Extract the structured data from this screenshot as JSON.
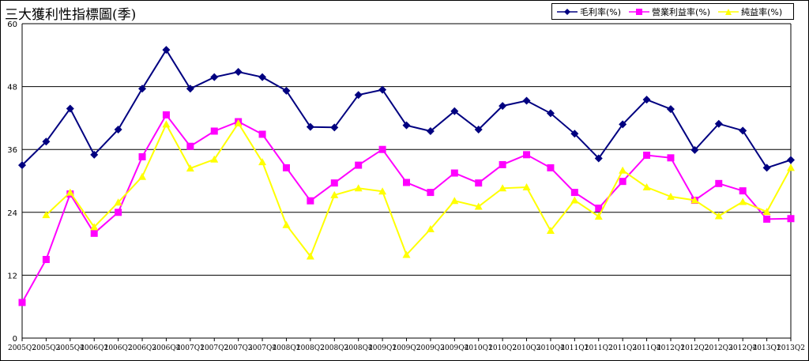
{
  "chart_data": {
    "type": "line",
    "title": "三大獲利性指標圖(季)",
    "xlabel": "",
    "ylabel": "",
    "ylim": [
      0,
      60
    ],
    "yticks": [
      0,
      12,
      24,
      36,
      48,
      60
    ],
    "grid": "horizontal",
    "legend_position": "top-right",
    "categories": [
      "2005Q2",
      "2005Q3",
      "2005Q4",
      "2006Q1",
      "2006Q2",
      "2006Q3",
      "2006Q4",
      "2007Q1",
      "2007Q2",
      "2007Q3",
      "2007Q4",
      "2008Q1",
      "2008Q2",
      "2008Q3",
      "2008Q4",
      "2009Q1",
      "2009Q2",
      "2009Q3",
      "2009Q4",
      "2010Q1",
      "2010Q2",
      "2010Q3",
      "2010Q4",
      "2011Q1",
      "2011Q2",
      "2011Q3",
      "2011Q4",
      "2012Q1",
      "2012Q2",
      "2012Q3",
      "2012Q4",
      "2013Q1",
      "2013Q2"
    ],
    "series": [
      {
        "name": "毛利率(%)",
        "color": "#000080",
        "marker": "diamond",
        "values": [
          33.0,
          37.5,
          43.8,
          35.0,
          39.8,
          47.6,
          55.0,
          47.6,
          49.8,
          50.8,
          49.8,
          47.2,
          40.3,
          40.2,
          46.4,
          47.4,
          40.6,
          39.5,
          43.3,
          39.8,
          44.3,
          45.3,
          42.9,
          39.0,
          34.3,
          40.8,
          45.5,
          43.7,
          35.9,
          40.9,
          39.6,
          32.5,
          34.0
        ]
      },
      {
        "name": "營業利益率(%)",
        "color": "#ff00ff",
        "marker": "square",
        "values": [
          6.8,
          15.0,
          27.5,
          20.0,
          24.0,
          34.6,
          42.6,
          36.6,
          39.5,
          41.3,
          38.9,
          32.5,
          26.2,
          29.6,
          33.0,
          36.0,
          29.7,
          27.8,
          31.5,
          29.6,
          33.1,
          35.0,
          32.5,
          27.8,
          24.8,
          29.9,
          34.9,
          34.4,
          26.3,
          29.5,
          28.1,
          22.7,
          22.8
        ]
      },
      {
        "name": "純益率(%)",
        "color": "#ffff00",
        "marker": "triangle",
        "values": [
          null,
          23.5,
          27.8,
          21.2,
          25.9,
          30.8,
          40.8,
          32.4,
          34.1,
          41.0,
          33.6,
          21.6,
          15.6,
          27.3,
          28.6,
          28.0,
          15.9,
          20.8,
          26.2,
          25.1,
          28.6,
          28.8,
          20.5,
          26.3,
          23.2,
          32.0,
          28.8,
          27.0,
          26.3,
          23.3,
          26.0,
          24.1,
          32.5
        ]
      }
    ]
  }
}
